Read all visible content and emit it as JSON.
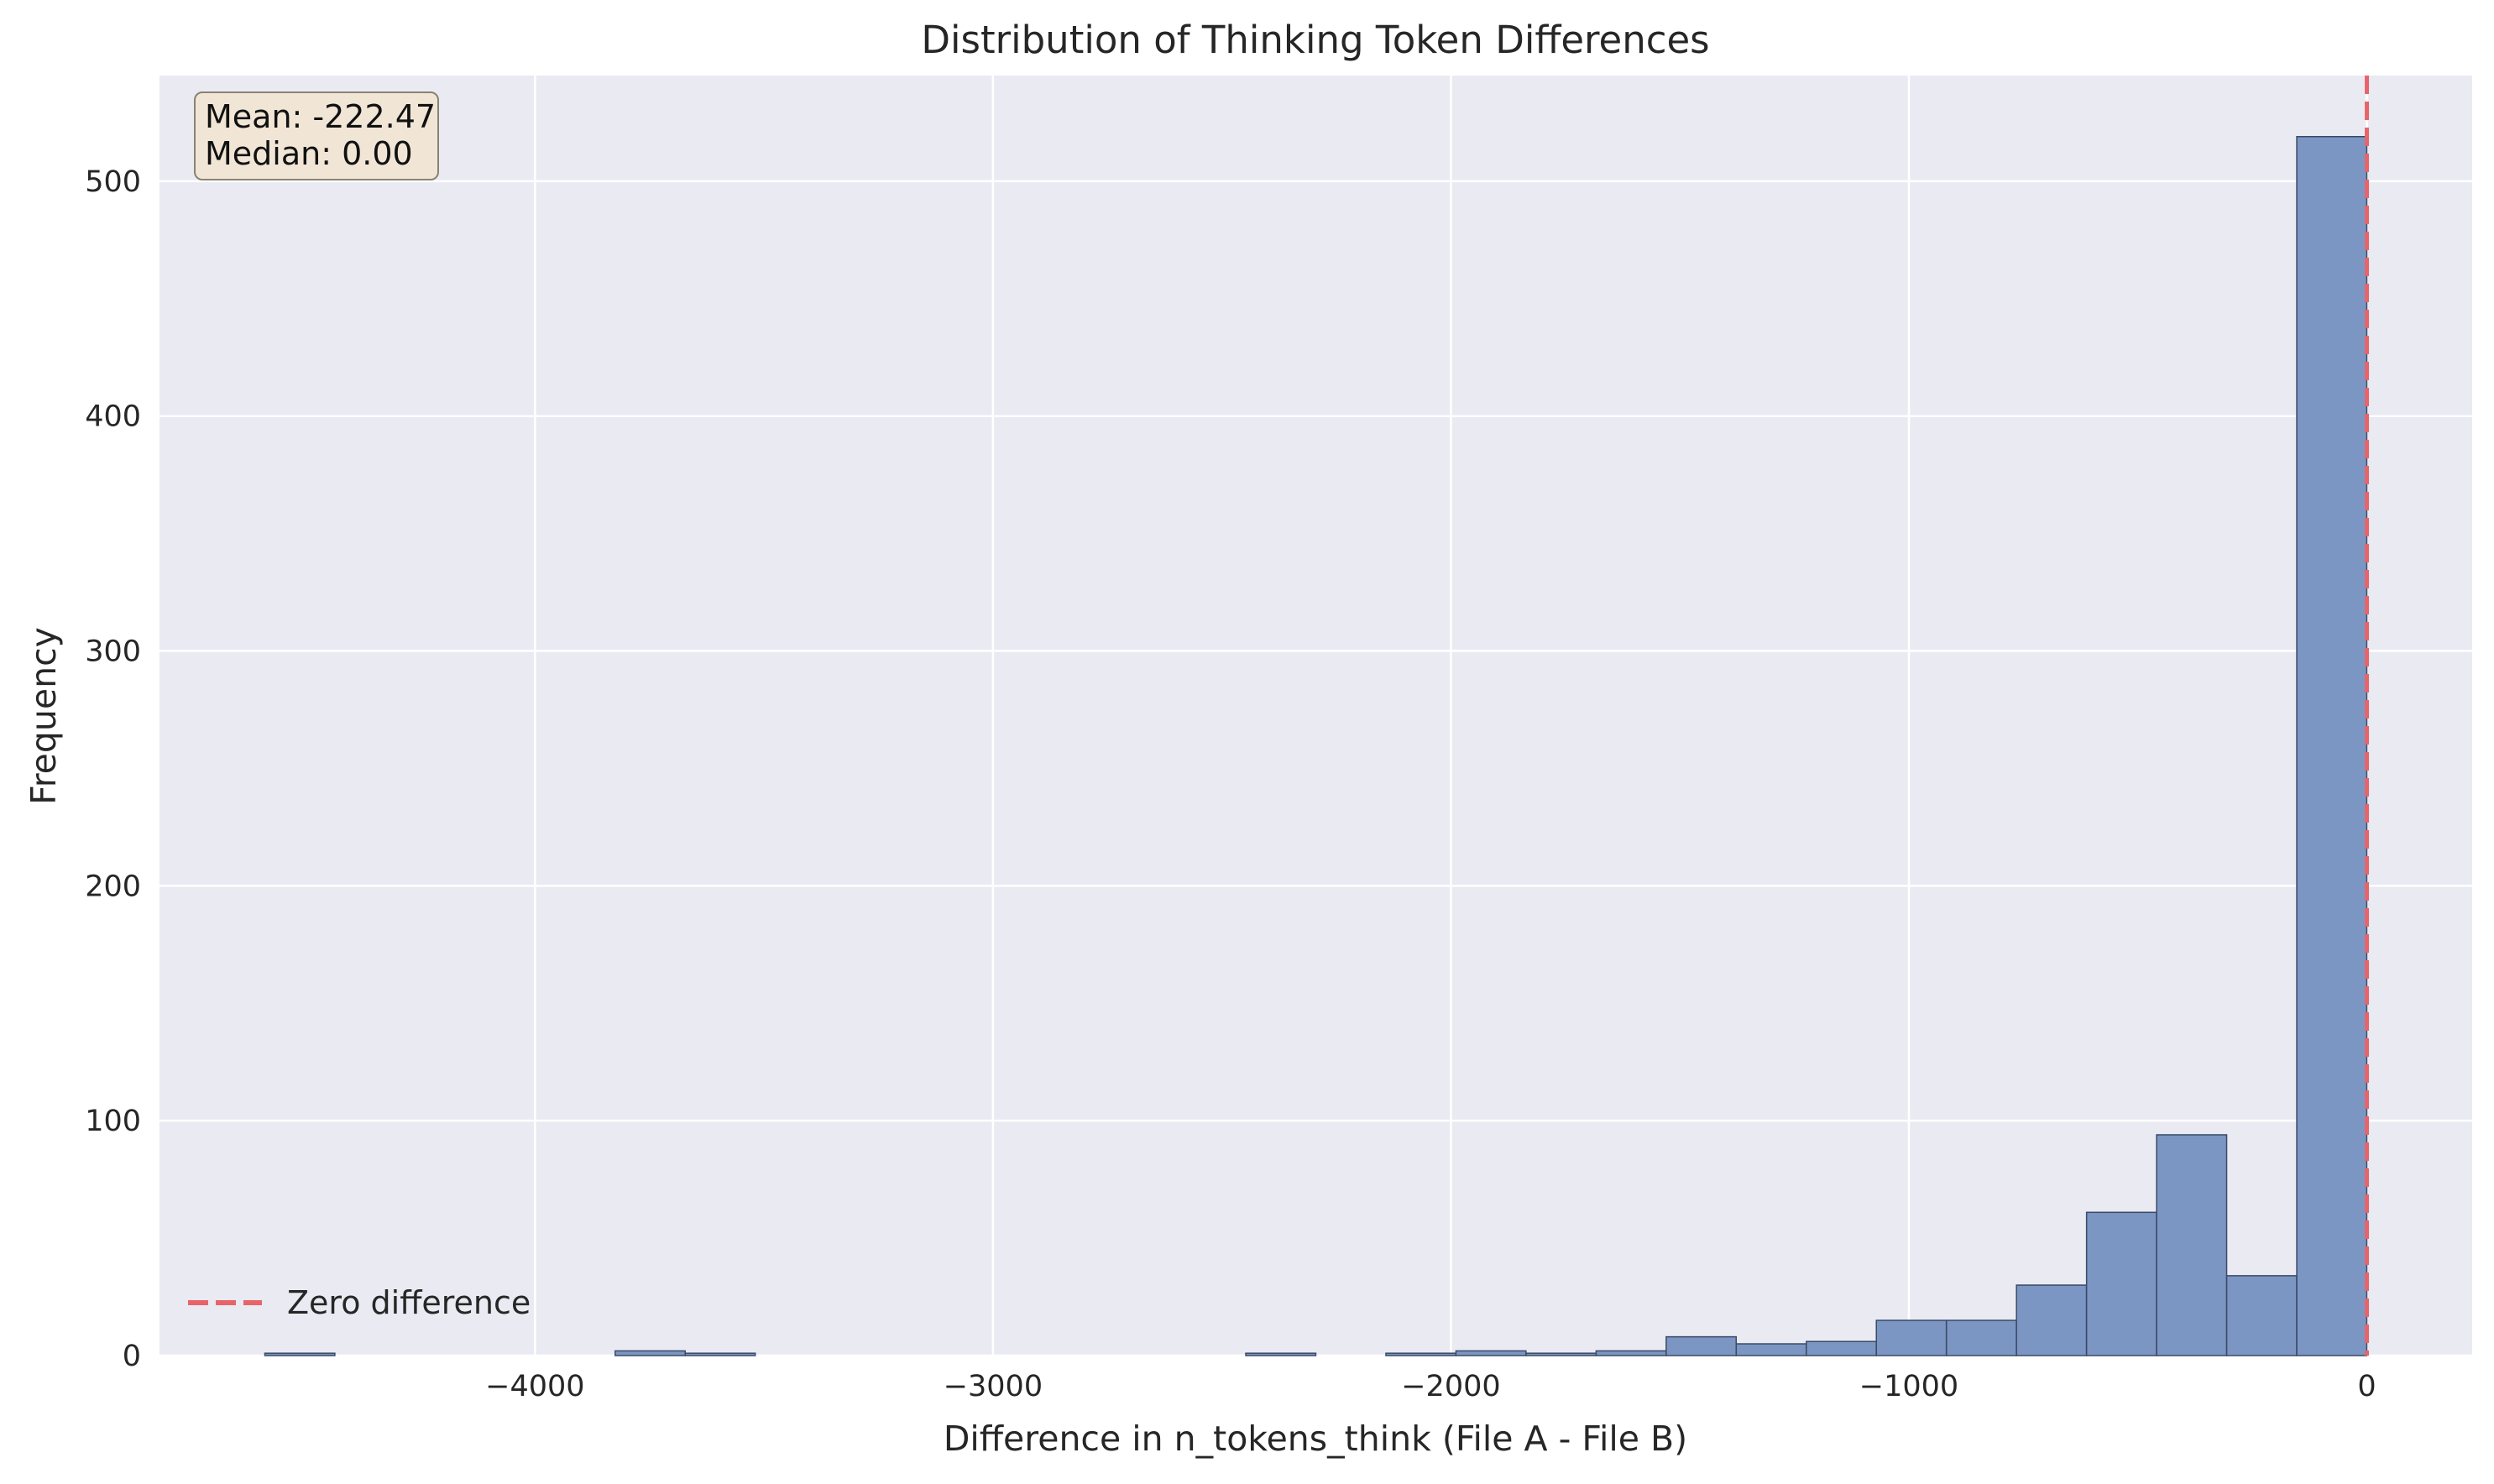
{
  "chart_data": {
    "type": "bar",
    "title": "Distribution of Thinking Token Differences",
    "xlabel": "Difference in n_tokens_think (File A - File B)",
    "ylabel": "Frequency",
    "xlim": [
      -4820,
      230
    ],
    "ylim": [
      0,
      545
    ],
    "x_ticks": [
      -4000,
      -3000,
      -2000,
      -1000,
      0
    ],
    "x_tick_labels": [
      "−4000",
      "−3000",
      "−2000",
      "−1000",
      "0"
    ],
    "y_ticks": [
      0,
      100,
      200,
      300,
      400,
      500
    ],
    "y_tick_labels": [
      "0",
      "100",
      "200",
      "300",
      "400",
      "500"
    ],
    "grid": true,
    "bin_width": 152.9,
    "bins": [
      {
        "x0": -4590,
        "count": 1
      },
      {
        "x0": -3825,
        "count": 2
      },
      {
        "x0": -3672,
        "count": 1
      },
      {
        "x0": -2448,
        "count": 1
      },
      {
        "x0": -2142,
        "count": 1
      },
      {
        "x0": -1989,
        "count": 2
      },
      {
        "x0": -1836,
        "count": 1
      },
      {
        "x0": -1683,
        "count": 2
      },
      {
        "x0": -1530,
        "count": 8
      },
      {
        "x0": -1377,
        "count": 5
      },
      {
        "x0": -1224,
        "count": 6
      },
      {
        "x0": -1071,
        "count": 15
      },
      {
        "x0": -918,
        "count": 15
      },
      {
        "x0": -765,
        "count": 30
      },
      {
        "x0": -612,
        "count": 61
      },
      {
        "x0": -459,
        "count": 94
      },
      {
        "x0": -306,
        "count": 34
      },
      {
        "x0": -153,
        "count": 519
      }
    ],
    "reference_line": {
      "x": 0,
      "label": "Zero difference",
      "color": "#e8646b",
      "style": "dashed"
    },
    "legend_position": "lower-left",
    "stats_box": {
      "mean": "Mean: -222.47",
      "median": "Median: 0.00"
    },
    "colors": {
      "bar": "#7b96c2",
      "bar_edge": "#3a4a66",
      "plot_bg": "#eaeaf2",
      "grid": "#ffffff",
      "stats_bg": "#f1e6d6",
      "stats_edge": "#8a8275"
    }
  }
}
